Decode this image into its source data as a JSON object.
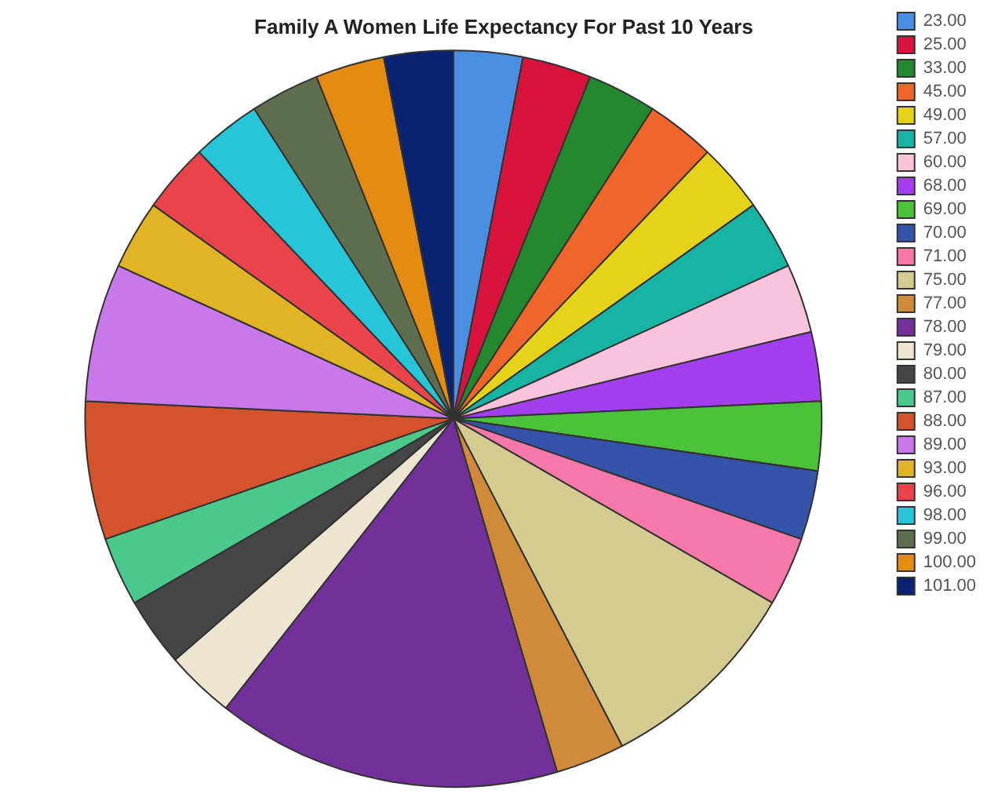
{
  "chart_data": {
    "type": "pie",
    "title": "Family A Women Life Expectancy For Past 10 Years",
    "categories": [
      "23.00",
      "25.00",
      "33.00",
      "45.00",
      "49.00",
      "57.00",
      "60.00",
      "68.00",
      "69.00",
      "70.00",
      "71.00",
      "75.00",
      "77.00",
      "78.00",
      "79.00",
      "80.00",
      "87.00",
      "88.00",
      "89.00",
      "93.00",
      "96.00",
      "98.00",
      "99.00",
      "100.00",
      "101.00"
    ],
    "values": [
      3.03,
      3.03,
      3.03,
      3.03,
      3.03,
      3.03,
      3.03,
      3.03,
      3.03,
      3.03,
      3.03,
      9.09,
      3.03,
      15.15,
      3.03,
      3.03,
      3.03,
      6.06,
      6.06,
      3.03,
      3.03,
      3.03,
      3.03,
      3.03,
      3.03
    ],
    "colors": [
      "#4a90e2",
      "#d8143c",
      "#23892f",
      "#f0662a",
      "#e6d21a",
      "#17b3a3",
      "#f9c3dc",
      "#a43ff0",
      "#4cc13a",
      "#3354a8",
      "#f578a9",
      "#d3cb90",
      "#d08a3a",
      "#71309a",
      "#ece5cf",
      "#454545",
      "#4ac98a",
      "#d4532c",
      "#c878ea",
      "#e0b424",
      "#e9434b",
      "#27c5d8",
      "#5e6e4e",
      "#e48b12",
      "#0a2272"
    ],
    "legend": "right"
  }
}
